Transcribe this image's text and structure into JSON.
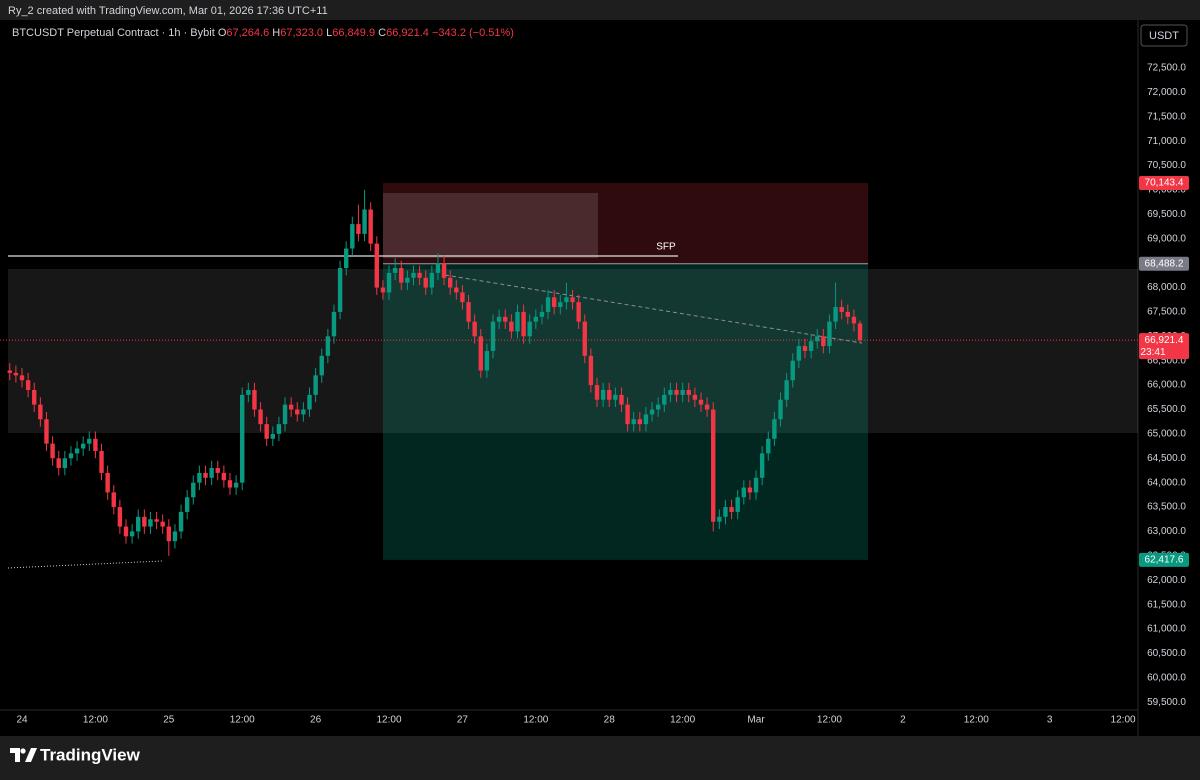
{
  "header": {
    "credit": "Ry_2 created with TradingView.com, Mar 01, 2026 17:36 UTC+11",
    "symbol": "BTCUSDT Perpetual Contract · 1h · Bybit",
    "ohlc": [
      {
        "key": "O",
        "value": "67,264.6"
      },
      {
        "key": "H",
        "value": "67,323.0"
      },
      {
        "key": "L",
        "value": "66,849.9"
      },
      {
        "key": "C",
        "value": "66,921.4"
      }
    ],
    "change": "−343.2 (−0.51%)",
    "currency": "USDT"
  },
  "footer": {
    "logo": "TradingView"
  },
  "chart_data": {
    "type": "candlestick",
    "up_color": "#089981",
    "down_color": "#f23645",
    "grid": false,
    "categories": [
      null,
      null,
      "24",
      null,
      null,
      null,
      null,
      null,
      null,
      null,
      null,
      null,
      null,
      null,
      "12:00",
      null,
      null,
      null,
      null,
      null,
      null,
      null,
      null,
      null,
      null,
      null,
      "25",
      null,
      null,
      null,
      null,
      null,
      null,
      null,
      null,
      null,
      null,
      null,
      "12:00",
      null,
      null,
      null,
      null,
      null,
      null,
      null,
      null,
      null,
      null,
      null,
      "26",
      null,
      null,
      null,
      null,
      null,
      null,
      null,
      null,
      null,
      null,
      null,
      "12:00",
      null,
      null,
      null,
      null,
      null,
      null,
      null,
      null,
      null,
      null,
      null,
      "27",
      null,
      null,
      null,
      null,
      null,
      null,
      null,
      null,
      null,
      null,
      null,
      "12:00",
      null,
      null,
      null,
      null,
      null,
      null,
      null,
      null,
      null,
      null,
      null,
      "28",
      null,
      null,
      null,
      null,
      null,
      null,
      null,
      null,
      null,
      null,
      null,
      "12:00",
      null,
      null,
      null,
      null,
      null,
      null,
      null,
      null,
      null,
      null,
      null,
      "Mar",
      null,
      null,
      null,
      null,
      null,
      null,
      null,
      null,
      null,
      null,
      null,
      "12:00",
      null,
      null,
      null,
      null,
      null,
      null,
      null,
      null,
      null,
      null,
      null,
      "2",
      null,
      null,
      null,
      null,
      null,
      null,
      null,
      null,
      null,
      null,
      null,
      "12:00",
      null,
      null,
      null,
      null,
      null,
      null,
      null,
      null,
      null,
      null,
      null,
      "3",
      null,
      null,
      null,
      null,
      null,
      null,
      null,
      null,
      null,
      null,
      null,
      "12:00"
    ],
    "candles": {
      "open": [
        66300,
        66250,
        66200,
        66100,
        65900,
        65600,
        65300,
        64800,
        64500,
        64300,
        64500,
        64600,
        64700,
        64800,
        64900,
        64650,
        64200,
        63800,
        63500,
        63100,
        62900,
        63000,
        63300,
        63100,
        63250,
        63200,
        63100,
        62800,
        63000,
        63400,
        63700,
        64000,
        64200,
        64100,
        64300,
        64200,
        64050,
        63900,
        64000,
        65800,
        65900,
        65500,
        65200,
        64900,
        65000,
        65200,
        65600,
        65500,
        65400,
        65500,
        65800,
        66200,
        66600,
        67000,
        67500,
        68400,
        68800,
        69300,
        69100,
        69600,
        68900,
        68000,
        67900,
        68300,
        68400,
        68100,
        68200,
        68300,
        68200,
        68000,
        68300,
        68500,
        68200,
        68000,
        67900,
        67700,
        67300,
        67000,
        66300,
        66700,
        67300,
        67400,
        67300,
        67100,
        67500,
        67000,
        67300,
        67400,
        67500,
        67800,
        67600,
        67700,
        67800,
        67700,
        67300,
        66600,
        66000,
        65700,
        65900,
        65700,
        65800,
        65600,
        65200,
        65300,
        65200,
        65400,
        65500,
        65600,
        65800,
        65900,
        65800,
        65900,
        65800,
        65700,
        65600,
        65500,
        63200,
        63300,
        63500,
        63400,
        63700,
        63900,
        63800,
        64100,
        64600,
        64900,
        65300,
        65700,
        66100,
        66500,
        66800,
        66700,
        66900,
        67000,
        66800,
        67300,
        67600,
        67500,
        67400,
        67264.6,
        null,
        null,
        null,
        null,
        null,
        null,
        null,
        null,
        null,
        null,
        null,
        null,
        null,
        null,
        null,
        null,
        null,
        null,
        null,
        null,
        null,
        null,
        null,
        null,
        null,
        null,
        null,
        null,
        null,
        null,
        null,
        null,
        null,
        null,
        null,
        null,
        null,
        null,
        null,
        null,
        null,
        null,
        null
      ],
      "high": [
        66450,
        66400,
        66350,
        66250,
        66050,
        65750,
        65450,
        64950,
        64650,
        64650,
        64750,
        64850,
        64950,
        65050,
        65050,
        64800,
        64350,
        63950,
        63650,
        63250,
        63150,
        63450,
        63450,
        63400,
        63400,
        63350,
        63250,
        63150,
        63550,
        63850,
        64150,
        64350,
        64350,
        64450,
        64450,
        64350,
        64200,
        64150,
        65950,
        66050,
        66050,
        65650,
        65350,
        65150,
        65350,
        65750,
        65750,
        65650,
        65650,
        65950,
        66350,
        66750,
        67150,
        67650,
        68550,
        68950,
        69450,
        69700,
        70000,
        69750,
        69050,
        68150,
        68450,
        68600,
        68550,
        68350,
        68450,
        68450,
        68350,
        68450,
        68700,
        68650,
        68350,
        68150,
        68050,
        67850,
        67450,
        67150,
        66850,
        67450,
        67550,
        67550,
        67450,
        67650,
        67650,
        67450,
        67550,
        67650,
        67950,
        67950,
        67850,
        68100,
        67950,
        67850,
        67450,
        66750,
        66150,
        66050,
        66050,
        65950,
        65950,
        65750,
        65450,
        65450,
        65550,
        65650,
        65750,
        65950,
        66050,
        66050,
        66050,
        66050,
        65950,
        65850,
        65750,
        65650,
        63450,
        63650,
        63650,
        63850,
        64050,
        64050,
        64250,
        64750,
        65050,
        65450,
        65850,
        66250,
        66650,
        66950,
        66950,
        67050,
        67150,
        67150,
        67450,
        68100,
        67750,
        67650,
        67550,
        67323.0,
        null,
        null,
        null,
        null,
        null,
        null,
        null,
        null,
        null,
        null,
        null,
        null,
        null,
        null,
        null,
        null,
        null,
        null,
        null,
        null,
        null,
        null,
        null,
        null,
        null,
        null,
        null,
        null,
        null,
        null,
        null,
        null,
        null,
        null,
        null,
        null,
        null,
        null,
        null,
        null,
        null,
        null,
        null
      ],
      "low": [
        66100,
        66050,
        65950,
        65750,
        65450,
        65150,
        64650,
        64350,
        64150,
        64150,
        64350,
        64450,
        64550,
        64650,
        64500,
        64050,
        63650,
        63350,
        62950,
        62750,
        62750,
        62850,
        62950,
        62950,
        63050,
        62950,
        62500,
        62650,
        62850,
        63250,
        63550,
        63850,
        63950,
        63950,
        64050,
        63900,
        63750,
        63750,
        63850,
        65650,
        65350,
        65050,
        64750,
        64750,
        64850,
        65050,
        65350,
        65250,
        65250,
        65350,
        65650,
        66050,
        66450,
        66850,
        67350,
        68250,
        68650,
        68950,
        68950,
        68750,
        67850,
        67750,
        67750,
        68150,
        67950,
        67950,
        68050,
        68050,
        67850,
        67850,
        68150,
        68050,
        67850,
        67750,
        67550,
        67150,
        66850,
        66150,
        66150,
        66550,
        67150,
        67150,
        66950,
        66950,
        66850,
        66850,
        67150,
        67250,
        67350,
        67450,
        67450,
        67550,
        67550,
        67150,
        66450,
        65850,
        65550,
        65550,
        65550,
        65550,
        65450,
        65050,
        65050,
        65050,
        65050,
        65250,
        65350,
        65450,
        65650,
        65650,
        65650,
        65650,
        65550,
        65450,
        65350,
        63000,
        63050,
        63150,
        63250,
        63250,
        63550,
        63650,
        63650,
        63950,
        64450,
        64750,
        65150,
        65550,
        65950,
        66350,
        66550,
        66550,
        66750,
        66650,
        66650,
        67150,
        67350,
        67250,
        67100,
        66849.9,
        null,
        null,
        null,
        null,
        null,
        null,
        null,
        null,
        null,
        null,
        null,
        null,
        null,
        null,
        null,
        null,
        null,
        null,
        null,
        null,
        null,
        null,
        null,
        null,
        null,
        null,
        null,
        null,
        null,
        null,
        null,
        null,
        null,
        null,
        null,
        null,
        null,
        null,
        null,
        null,
        null,
        null,
        null
      ],
      "close": [
        66250,
        66200,
        66100,
        65900,
        65600,
        65300,
        64800,
        64500,
        64300,
        64500,
        64600,
        64700,
        64800,
        64900,
        64650,
        64200,
        63800,
        63500,
        63100,
        62900,
        63000,
        63300,
        63100,
        63250,
        63200,
        63100,
        62800,
        63000,
        63400,
        63700,
        64000,
        64200,
        64100,
        64300,
        64200,
        64050,
        63900,
        64000,
        65800,
        65900,
        65500,
        65200,
        64900,
        65000,
        65200,
        65600,
        65500,
        65400,
        65500,
        65800,
        66200,
        66600,
        67000,
        67500,
        68400,
        68800,
        69300,
        69100,
        69600,
        68900,
        68000,
        67900,
        68300,
        68400,
        68100,
        68200,
        68300,
        68200,
        68000,
        68300,
        68500,
        68200,
        68000,
        67900,
        67700,
        67300,
        67000,
        66300,
        66700,
        67300,
        67400,
        67300,
        67100,
        67500,
        67000,
        67300,
        67400,
        67500,
        67800,
        67600,
        67700,
        67800,
        67700,
        67300,
        66600,
        66000,
        65700,
        65900,
        65700,
        65800,
        65600,
        65200,
        65300,
        65200,
        65400,
        65500,
        65600,
        65800,
        65900,
        65800,
        65900,
        65800,
        65700,
        65600,
        65500,
        63200,
        63300,
        63500,
        63400,
        63700,
        63900,
        63800,
        64100,
        64600,
        64900,
        65300,
        65700,
        66100,
        66500,
        66800,
        66700,
        66900,
        67000,
        66800,
        67300,
        67600,
        67500,
        67400,
        67264.6,
        66921.4,
        null,
        null,
        null,
        null,
        null,
        null,
        null,
        null,
        null,
        null,
        null,
        null,
        null,
        null,
        null,
        null,
        null,
        null,
        null,
        null,
        null,
        null,
        null,
        null,
        null,
        null,
        null,
        null,
        null,
        null,
        null,
        null,
        null,
        null,
        null,
        null,
        null,
        null,
        null,
        null,
        null,
        null,
        null
      ]
    },
    "ylim": [
      59340,
      73320
    ],
    "yticks": [
      {
        "value": 72500,
        "label": "72,500.0"
      },
      {
        "value": 72000,
        "label": "72,000.0"
      },
      {
        "value": 71500,
        "label": "71,500.0"
      },
      {
        "value": 71000,
        "label": "71,000.0"
      },
      {
        "value": 70500,
        "label": "70,500.0"
      },
      {
        "value": 70000,
        "label": "70,000.0"
      },
      {
        "value": 69500,
        "label": "69,500.0"
      },
      {
        "value": 69000,
        "label": "69,000.0"
      },
      {
        "value": 68500,
        "label": "68,500.0"
      },
      {
        "value": 68000,
        "label": "68,000.0"
      },
      {
        "value": 67500,
        "label": "67,500.0"
      },
      {
        "value": 67000,
        "label": "67,000.0"
      },
      {
        "value": 66500,
        "label": "66,500.0"
      },
      {
        "value": 66000,
        "label": "66,000.0"
      },
      {
        "value": 65500,
        "label": "65,500.0"
      },
      {
        "value": 65000,
        "label": "65,000.0"
      },
      {
        "value": 64500,
        "label": "64,500.0"
      },
      {
        "value": 64000,
        "label": "64,000.0"
      },
      {
        "value": 63500,
        "label": "63,500.0"
      },
      {
        "value": 63000,
        "label": "63,000.0"
      },
      {
        "value": 62500,
        "label": "62,500.0"
      },
      {
        "value": 62000,
        "label": "62,000.0"
      },
      {
        "value": 61500,
        "label": "61,500.0"
      },
      {
        "value": 61000,
        "label": "61,000.0"
      },
      {
        "value": 60500,
        "label": "60,500.0"
      },
      {
        "value": 60000,
        "label": "60,000.0"
      },
      {
        "value": 59500,
        "label": "59,500.0"
      }
    ],
    "position": {
      "stop": {
        "value": 70143.4,
        "label": "70,143.4"
      },
      "entry": {
        "value": 68488.2,
        "label": "68,488.2"
      },
      "target": {
        "value": 62417.6,
        "label": "62,417.6"
      }
    },
    "last_price": {
      "value": 66921.4,
      "label": "66,921.4"
    },
    "countdown": "23:41",
    "annotation": "SFP"
  }
}
